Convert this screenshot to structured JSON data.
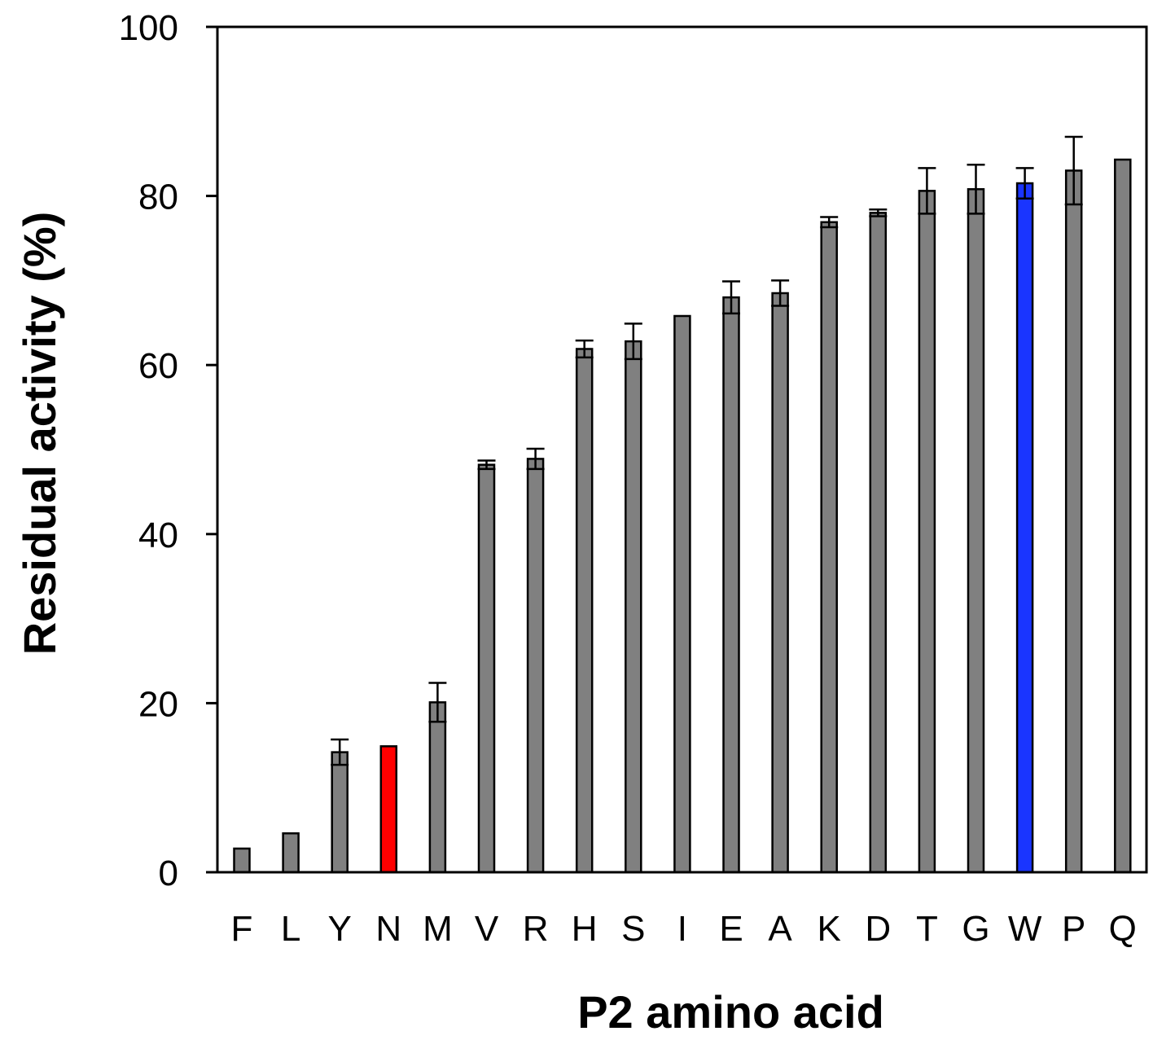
{
  "chart_data": {
    "type": "bar",
    "title": "",
    "xlabel": "P2 amino acid",
    "ylabel": "Residual activity (%)",
    "ylim": [
      0,
      100
    ],
    "yticks": [
      0,
      20,
      40,
      60,
      80,
      100
    ],
    "grid": false,
    "categories": [
      "F",
      "L",
      "Y",
      "N",
      "M",
      "V",
      "R",
      "H",
      "S",
      "I",
      "E",
      "A",
      "K",
      "D",
      "T",
      "G",
      "W",
      "P",
      "Q"
    ],
    "values": [
      2.8,
      4.6,
      14.2,
      14.9,
      20.1,
      48.2,
      48.9,
      61.9,
      62.8,
      65.8,
      68.0,
      68.5,
      76.9,
      78.0,
      80.6,
      80.8,
      81.5,
      83.0,
      84.3
    ],
    "errors": [
      0,
      0,
      1.5,
      0,
      2.3,
      0.5,
      1.2,
      1.0,
      2.1,
      0,
      1.9,
      1.5,
      0.6,
      0.4,
      2.7,
      2.9,
      1.8,
      4.0,
      0
    ],
    "default_color": "#808080",
    "highlight_colors": {
      "N": "#ff0000",
      "W": "#1a35ff"
    }
  }
}
